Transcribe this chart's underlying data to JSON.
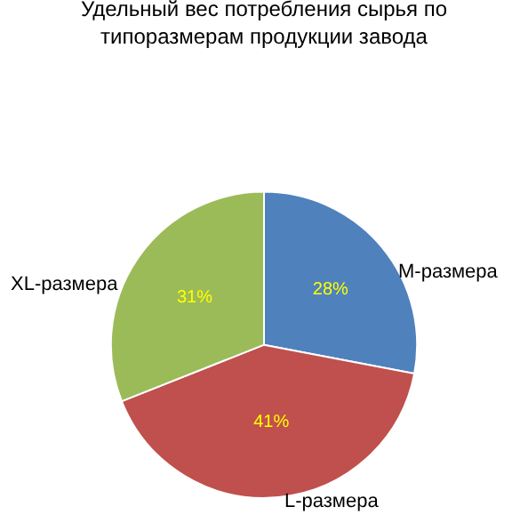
{
  "chart_data": {
    "type": "pie",
    "title": "Удельный вес потребления сырья по типоразмерам продукции завода",
    "categories": [
      "M-размера",
      "L-размера",
      "XL-размера"
    ],
    "values": [
      28,
      41,
      31
    ],
    "colors": [
      "#4f81bd",
      "#c0504d",
      "#9bbb59"
    ],
    "value_labels": [
      "28%",
      "41%",
      "31%"
    ],
    "legend": false
  }
}
